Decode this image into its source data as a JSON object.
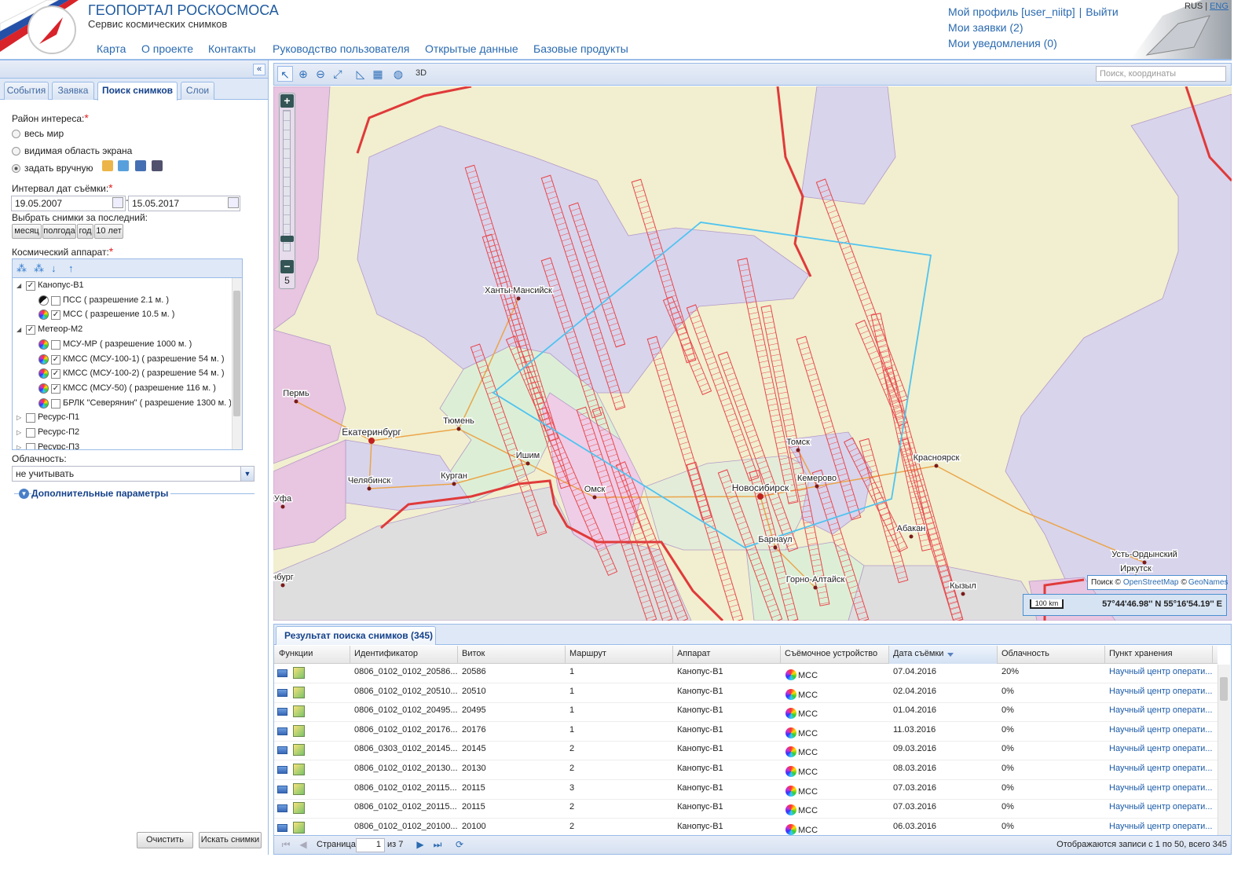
{
  "header": {
    "title": "ГЕОПОРТАЛ РОСКОСМОСА",
    "subtitle": "Сервис космических снимков",
    "nav": [
      "Карта",
      "О проекте",
      "Контакты",
      "Руководство пользователя",
      "Открытые данные",
      "Базовые продукты"
    ],
    "user": {
      "profile": "Мой профиль [user_niitp]",
      "separator": "|",
      "logout": "Выйти",
      "requests": "Мои заявки (2)",
      "notifications": "Мои уведомления (0)"
    },
    "languages": [
      "RUS",
      "ENG"
    ],
    "language_separator": "|"
  },
  "sidebar": {
    "tabs": [
      "События",
      "Заявка",
      "Поиск снимков",
      "Слои"
    ],
    "area": {
      "label": "Район интереса:",
      "required": "*",
      "options": [
        "весь мир",
        "видимая область экрана",
        "задать вручную"
      ]
    },
    "dates": {
      "label": "Интервал дат съёмки:",
      "required": "*",
      "from": "19.05.2007",
      "separator": "-",
      "to": "15.05.2017"
    },
    "period": {
      "label": "Выбрать снимки за последний:",
      "buttons": [
        "месяц",
        "полгода",
        "год",
        "10 лет"
      ]
    },
    "satellites": {
      "label": "Космический аппарат:",
      "required": "*",
      "tree": [
        {
          "name": "Канопус-В1",
          "devices": [
            "ПСС ( разрешение 2.1 м. )",
            "МСС ( разрешение 10.5 м. )"
          ]
        },
        {
          "name": "Метеор-М2",
          "devices": [
            "МСУ-МР ( разрешение 1000 м. )",
            "КМСС (МСУ-100-1) ( разрешение 54 м. )",
            "КМСС (МСУ-100-2) ( разрешение 54 м. )",
            "КМСС (МСУ-50) ( разрешение 116 м. )",
            "БРЛК \"Северянин\" ( разрешение 1300 м. )"
          ]
        },
        {
          "name": "Ресурс-П1"
        },
        {
          "name": "Ресурс-П2"
        },
        {
          "name": "Ресурс-П3"
        }
      ]
    },
    "cloud": {
      "label": "Облачность:",
      "value": "не учитывать"
    },
    "extra": "Дополнительные параметры",
    "buttons": [
      "Очистить",
      "Искать снимки"
    ]
  },
  "map": {
    "mode": "3D",
    "search_placeholder": "Поиск, координаты",
    "zoom_in": "+",
    "zoom_out": "−",
    "zoom_level": "5",
    "cities": [
      "Ханты-Мансийск",
      "Пермь",
      "Екатеринбург",
      "Тюмень",
      "Ишим",
      "Курган",
      "Челябинск",
      "Уфа",
      "Омск",
      "Новосибирск",
      "Томск",
      "Кемерово",
      "Красноярск",
      "Барнаул",
      "Абакан",
      "Горно-Алтайск",
      "Кызыл",
      "Усть-Ордынский",
      "Иркутск",
      "нбург"
    ],
    "attribution": {
      "prefix": "Поиск ©",
      "osm": "OpenStreetMap",
      "copy": "©",
      "geonames": "GeoNames"
    },
    "scale": "100 km",
    "coordinates": "57°44'46.98'' N 55°16'54.19'' E"
  },
  "results": {
    "title": "Результат поиска снимков (345)",
    "columns": [
      "Функции",
      "Идентификатор",
      "Виток",
      "Маршрут",
      "Аппарат",
      "Съёмочное устройство",
      "Дата съёмки",
      "Облачность",
      "Пункт хранения"
    ],
    "rows": [
      [
        "0806_0102_0102_20586...",
        "20586",
        "1",
        "Канопус-В1",
        "МСС",
        "07.04.2016",
        "20%",
        "Научный центр операти..."
      ],
      [
        "0806_0102_0102_20510...",
        "20510",
        "1",
        "Канопус-В1",
        "МСС",
        "02.04.2016",
        "0%",
        "Научный центр операти..."
      ],
      [
        "0806_0102_0102_20495...",
        "20495",
        "1",
        "Канопус-В1",
        "МСС",
        "01.04.2016",
        "0%",
        "Научный центр операти..."
      ],
      [
        "0806_0102_0102_20176...",
        "20176",
        "1",
        "Канопус-В1",
        "МСС",
        "11.03.2016",
        "0%",
        "Научный центр операти..."
      ],
      [
        "0806_0303_0102_20145...",
        "20145",
        "2",
        "Канопус-В1",
        "МСС",
        "09.03.2016",
        "0%",
        "Научный центр операти..."
      ],
      [
        "0806_0102_0102_20130...",
        "20130",
        "2",
        "Канопус-В1",
        "МСС",
        "08.03.2016",
        "0%",
        "Научный центр операти..."
      ],
      [
        "0806_0102_0102_20115...",
        "20115",
        "3",
        "Канопус-В1",
        "МСС",
        "07.03.2016",
        "0%",
        "Научный центр операти..."
      ],
      [
        "0806_0102_0102_20115...",
        "20115",
        "2",
        "Канопус-В1",
        "МСС",
        "07.03.2016",
        "0%",
        "Научный центр операти..."
      ],
      [
        "0806_0102_0102_20100...",
        "20100",
        "2",
        "Канопус-В1",
        "МСС",
        "06.03.2016",
        "0%",
        "Научный центр операти..."
      ]
    ],
    "pager": {
      "page_label": "Страница",
      "page": "1",
      "of": "из 7",
      "summary": "Отображаются записи с 1 по 50, всего 345"
    }
  }
}
